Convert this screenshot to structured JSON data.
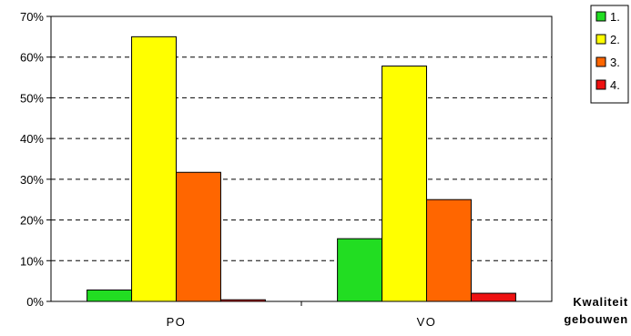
{
  "chart_data": {
    "type": "bar",
    "categories": [
      "PO",
      "VO"
    ],
    "series": [
      {
        "name": "1.",
        "color": "#22dd22",
        "values": [
          2.8,
          15.4
        ]
      },
      {
        "name": "2.",
        "color": "#ffff00",
        "values": [
          65.0,
          57.8
        ]
      },
      {
        "name": "3.",
        "color": "#ff6600",
        "values": [
          31.7,
          25.0
        ]
      },
      {
        "name": "4.",
        "color": "#ee1111",
        "values": [
          0.4,
          2.0
        ]
      }
    ],
    "ylim": [
      0,
      70
    ],
    "yticks": [
      "0%",
      "10%",
      "20%",
      "30%",
      "40%",
      "50%",
      "60%",
      "70%"
    ],
    "xlabel_lines": [
      "Kwaliteit",
      "gebouwen"
    ],
    "grid": true,
    "legend_position": "top-right"
  }
}
